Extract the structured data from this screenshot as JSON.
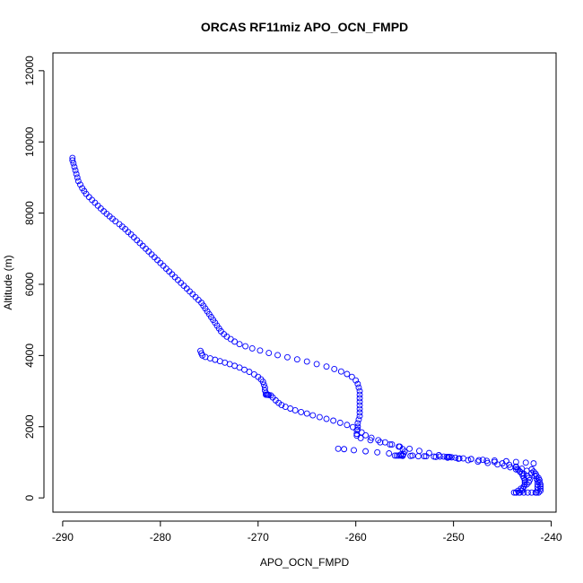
{
  "chart_data": {
    "type": "scatter",
    "title": "ORCAS RF11miz APO_OCN_FMPD",
    "xlabel": "APO_OCN_FMPD",
    "ylabel": "Altitude (m)",
    "xlim": [
      -291,
      -239.5
    ],
    "ylim": [
      -400,
      12500
    ],
    "xticks": [
      -290,
      -280,
      -270,
      -260,
      -250,
      -240
    ],
    "yticks": [
      0,
      2000,
      4000,
      6000,
      8000,
      10000,
      12000
    ],
    "marker": "open-circle",
    "series": [
      {
        "points": [
          [
            -289.0,
            9550
          ],
          [
            -289.0,
            9480
          ],
          [
            -288.9,
            9400
          ],
          [
            -288.8,
            9300
          ],
          [
            -288.7,
            9200
          ],
          [
            -288.6,
            9100
          ],
          [
            -288.5,
            9000
          ],
          [
            -288.4,
            8900
          ],
          [
            -288.2,
            8800
          ],
          [
            -288.0,
            8700
          ],
          [
            -287.8,
            8620
          ],
          [
            -287.6,
            8540
          ],
          [
            -287.3,
            8450
          ],
          [
            -287.0,
            8370
          ],
          [
            -286.7,
            8290
          ],
          [
            -286.4,
            8210
          ],
          [
            -286.1,
            8130
          ],
          [
            -285.8,
            8050
          ],
          [
            -285.5,
            7980
          ],
          [
            -285.2,
            7910
          ],
          [
            -284.9,
            7840
          ],
          [
            -284.6,
            7770
          ],
          [
            -284.2,
            7690
          ],
          [
            -283.9,
            7620
          ],
          [
            -283.6,
            7550
          ],
          [
            -283.3,
            7470
          ],
          [
            -283.0,
            7400
          ],
          [
            -282.7,
            7320
          ],
          [
            -282.4,
            7240
          ],
          [
            -282.1,
            7160
          ],
          [
            -281.8,
            7080
          ],
          [
            -281.5,
            7000
          ],
          [
            -281.2,
            6920
          ],
          [
            -280.9,
            6840
          ],
          [
            -280.6,
            6760
          ],
          [
            -280.3,
            6680
          ],
          [
            -280.0,
            6600
          ],
          [
            -279.7,
            6520
          ],
          [
            -279.4,
            6440
          ],
          [
            -279.1,
            6360
          ],
          [
            -278.8,
            6280
          ],
          [
            -278.5,
            6200
          ],
          [
            -278.2,
            6120
          ],
          [
            -277.9,
            6040
          ],
          [
            -277.6,
            5960
          ],
          [
            -277.3,
            5880
          ],
          [
            -277.0,
            5800
          ],
          [
            -276.7,
            5720
          ],
          [
            -276.4,
            5640
          ],
          [
            -276.1,
            5560
          ],
          [
            -275.8,
            5480
          ],
          [
            -275.6,
            5400
          ],
          [
            -275.4,
            5320
          ],
          [
            -275.2,
            5240
          ],
          [
            -275.0,
            5160
          ],
          [
            -274.8,
            5080
          ],
          [
            -274.6,
            5000
          ],
          [
            -274.4,
            4920
          ],
          [
            -274.2,
            4840
          ],
          [
            -274.0,
            4760
          ],
          [
            -273.8,
            4680
          ],
          [
            -273.5,
            4600
          ],
          [
            -273.2,
            4530
          ],
          [
            -272.8,
            4460
          ],
          [
            -272.4,
            4390
          ],
          [
            -271.9,
            4320
          ],
          [
            -271.3,
            4260
          ],
          [
            -270.6,
            4200
          ],
          [
            -269.8,
            4140
          ],
          [
            -268.9,
            4070
          ],
          [
            -268.0,
            4010
          ],
          [
            -267.0,
            3950
          ],
          [
            -266.0,
            3890
          ],
          [
            -265.0,
            3830
          ],
          [
            -264.0,
            3760
          ],
          [
            -263.0,
            3690
          ],
          [
            -262.2,
            3620
          ],
          [
            -261.5,
            3550
          ],
          [
            -260.9,
            3480
          ],
          [
            -260.4,
            3400
          ],
          [
            -260.0,
            3300
          ],
          [
            -259.8,
            3200
          ],
          [
            -259.7,
            3100
          ],
          [
            -259.6,
            3000
          ],
          [
            -259.6,
            2900
          ],
          [
            -259.6,
            2800
          ],
          [
            -259.6,
            2700
          ],
          [
            -259.6,
            2600
          ],
          [
            -259.6,
            2500
          ],
          [
            -259.6,
            2400
          ],
          [
            -259.6,
            2300
          ],
          [
            -259.7,
            2200
          ],
          [
            -259.8,
            2100
          ],
          [
            -259.8,
            2000
          ],
          [
            -259.9,
            1900
          ],
          [
            -259.9,
            1800
          ],
          [
            -259.9,
            1750
          ],
          [
            -259.5,
            1680
          ],
          [
            -258.5,
            1620
          ],
          [
            -257.5,
            1560
          ],
          [
            -256.5,
            1500
          ],
          [
            -255.5,
            1440
          ],
          [
            -254.5,
            1380
          ],
          [
            -253.5,
            1320
          ],
          [
            -252.5,
            1260
          ],
          [
            -251.5,
            1200
          ],
          [
            -250.5,
            1150
          ],
          [
            -249.5,
            1100
          ],
          [
            -248.5,
            1060
          ],
          [
            -247.5,
            1020
          ],
          [
            -246.5,
            980
          ],
          [
            -245.5,
            940
          ],
          [
            -244.8,
            900
          ],
          [
            -244.2,
            860
          ],
          [
            -243.6,
            800
          ],
          [
            -243.2,
            740
          ],
          [
            -242.8,
            680
          ],
          [
            -242.5,
            620
          ],
          [
            -242.3,
            560
          ],
          [
            -242.2,
            500
          ],
          [
            -242.3,
            440
          ],
          [
            -242.5,
            380
          ],
          [
            -242.8,
            320
          ],
          [
            -243.1,
            260
          ],
          [
            -243.4,
            200
          ],
          [
            -243.6,
            150
          ],
          [
            -275.9,
            4130
          ],
          [
            -275.8,
            4060
          ],
          [
            -275.7,
            4000
          ],
          [
            -275.4,
            3960
          ],
          [
            -274.9,
            3920
          ],
          [
            -274.4,
            3880
          ],
          [
            -273.9,
            3840
          ],
          [
            -273.4,
            3800
          ],
          [
            -272.9,
            3760
          ],
          [
            -272.4,
            3710
          ],
          [
            -271.9,
            3660
          ],
          [
            -271.4,
            3600
          ],
          [
            -270.9,
            3540
          ],
          [
            -270.4,
            3470
          ],
          [
            -270.0,
            3400
          ],
          [
            -269.7,
            3330
          ],
          [
            -269.5,
            3260
          ],
          [
            -269.4,
            3180
          ],
          [
            -269.3,
            3100
          ],
          [
            -269.3,
            3020
          ],
          [
            -269.2,
            2950
          ],
          [
            -269.2,
            2900
          ],
          [
            -269.1,
            2900
          ],
          [
            -269.0,
            2900
          ],
          [
            -268.9,
            2890
          ],
          [
            -268.7,
            2880
          ],
          [
            -268.5,
            2820
          ],
          [
            -268.2,
            2740
          ],
          [
            -267.9,
            2670
          ],
          [
            -267.6,
            2610
          ],
          [
            -267.2,
            2560
          ],
          [
            -266.7,
            2510
          ],
          [
            -266.2,
            2460
          ],
          [
            -265.6,
            2410
          ],
          [
            -265.0,
            2370
          ],
          [
            -264.4,
            2320
          ],
          [
            -263.7,
            2270
          ],
          [
            -263.0,
            2220
          ],
          [
            -262.3,
            2170
          ],
          [
            -261.6,
            2110
          ],
          [
            -260.9,
            2050
          ],
          [
            -260.3,
            1990
          ],
          [
            -259.8,
            1920
          ],
          [
            -259.4,
            1840
          ],
          [
            -259.0,
            1760
          ],
          [
            -258.4,
            1690
          ],
          [
            -257.7,
            1620
          ],
          [
            -257.0,
            1560
          ],
          [
            -256.3,
            1500
          ],
          [
            -255.6,
            1440
          ],
          [
            -255.2,
            1370
          ],
          [
            -255.0,
            1300
          ],
          [
            -255.1,
            1240
          ],
          [
            -255.2,
            1200
          ],
          [
            -255.4,
            1190
          ],
          [
            -255.6,
            1190
          ],
          [
            -255.8,
            1190
          ],
          [
            -256.0,
            1190
          ],
          [
            -255.2,
            1180
          ],
          [
            -254.4,
            1180
          ],
          [
            -253.6,
            1170
          ],
          [
            -252.8,
            1170
          ],
          [
            -252.0,
            1160
          ],
          [
            -251.4,
            1160
          ],
          [
            -251.0,
            1160
          ],
          [
            -250.7,
            1150
          ],
          [
            -250.4,
            1150
          ],
          [
            -250.2,
            1140
          ],
          [
            -249.8,
            1130
          ],
          [
            -249.0,
            1110
          ],
          [
            -248.2,
            1090
          ],
          [
            -247.4,
            1060
          ],
          [
            -246.6,
            1040
          ],
          [
            -245.8,
            1010
          ],
          [
            -245.0,
            970
          ],
          [
            -244.3,
            930
          ],
          [
            -243.6,
            880
          ],
          [
            -243.0,
            820
          ],
          [
            -242.5,
            760
          ],
          [
            -242.0,
            700
          ],
          [
            -241.7,
            620
          ],
          [
            -241.5,
            540
          ],
          [
            -241.4,
            460
          ],
          [
            -241.4,
            380
          ],
          [
            -241.4,
            300
          ],
          [
            -241.4,
            220
          ],
          [
            -241.5,
            150
          ],
          [
            -243.6,
            860
          ],
          [
            -243.4,
            800
          ],
          [
            -243.2,
            740
          ],
          [
            -243.0,
            680
          ],
          [
            -242.9,
            620
          ],
          [
            -242.8,
            560
          ],
          [
            -242.7,
            500
          ],
          [
            -242.7,
            440
          ],
          [
            -242.7,
            380
          ],
          [
            -242.8,
            320
          ],
          [
            -242.9,
            260
          ],
          [
            -243.0,
            200
          ],
          [
            -243.3,
            150
          ],
          [
            -243.8,
            150
          ],
          [
            -243.6,
            150
          ],
          [
            -243.2,
            150
          ],
          [
            -242.8,
            150
          ],
          [
            -242.4,
            150
          ],
          [
            -242.0,
            150
          ],
          [
            -241.6,
            150
          ],
          [
            -241.3,
            150
          ],
          [
            -242.0,
            800
          ],
          [
            -241.8,
            740
          ],
          [
            -241.6,
            680
          ],
          [
            -241.5,
            620
          ],
          [
            -241.3,
            560
          ],
          [
            -241.2,
            500
          ],
          [
            -241.2,
            440
          ],
          [
            -241.1,
            380
          ],
          [
            -241.1,
            320
          ],
          [
            -241.1,
            260
          ],
          [
            -241.1,
            200
          ],
          [
            -261.8,
            1380
          ],
          [
            -261.2,
            1370
          ],
          [
            -260.2,
            1340
          ],
          [
            -259.0,
            1310
          ],
          [
            -257.8,
            1280
          ],
          [
            -256.6,
            1250
          ],
          [
            -255.4,
            1220
          ],
          [
            -254.2,
            1190
          ],
          [
            -253.0,
            1170
          ],
          [
            -251.8,
            1150
          ],
          [
            -250.6,
            1130
          ],
          [
            -249.4,
            1110
          ],
          [
            -248.2,
            1090
          ],
          [
            -247.0,
            1070
          ],
          [
            -245.8,
            1050
          ],
          [
            -244.6,
            1030
          ],
          [
            -243.6,
            1010
          ],
          [
            -242.6,
            990
          ],
          [
            -241.8,
            970
          ]
        ]
      }
    ],
    "colors": {
      "points": "#0000ff",
      "axes": "#000000"
    }
  }
}
